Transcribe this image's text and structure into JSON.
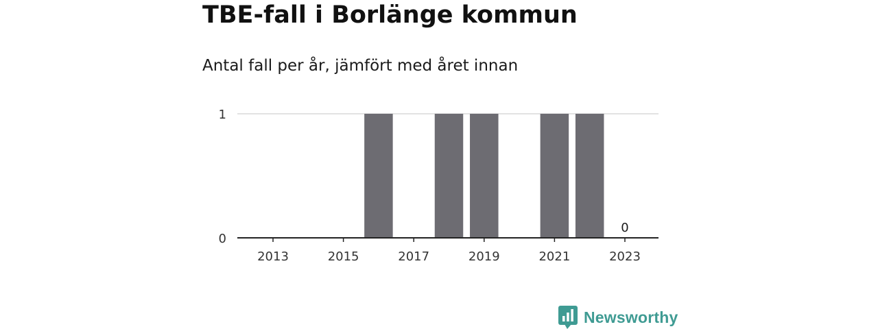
{
  "chart_data": {
    "type": "bar",
    "title": "TBE-fall i Borlänge kommun",
    "subtitle": "Antal fall per år, jämfört med året innan",
    "categories": [
      "2013",
      "2014",
      "2015",
      "2016",
      "2017",
      "2018",
      "2019",
      "2020",
      "2021",
      "2022",
      "2023"
    ],
    "values": [
      0,
      0,
      0,
      1,
      0,
      1,
      1,
      0,
      1,
      1,
      0
    ],
    "x_tick_labels": [
      "2013",
      "2015",
      "2017",
      "2019",
      "2021",
      "2023"
    ],
    "y_ticks": [
      0,
      1
    ],
    "ylim": [
      0,
      1
    ],
    "annotations": [
      {
        "category": "2023",
        "text": "0"
      }
    ],
    "grid": true,
    "bar_color": "#6d6c72"
  },
  "brand": {
    "name": "Newsworthy",
    "color": "#3f9b93",
    "icon": "bar-chart-speech-bubble-icon"
  }
}
